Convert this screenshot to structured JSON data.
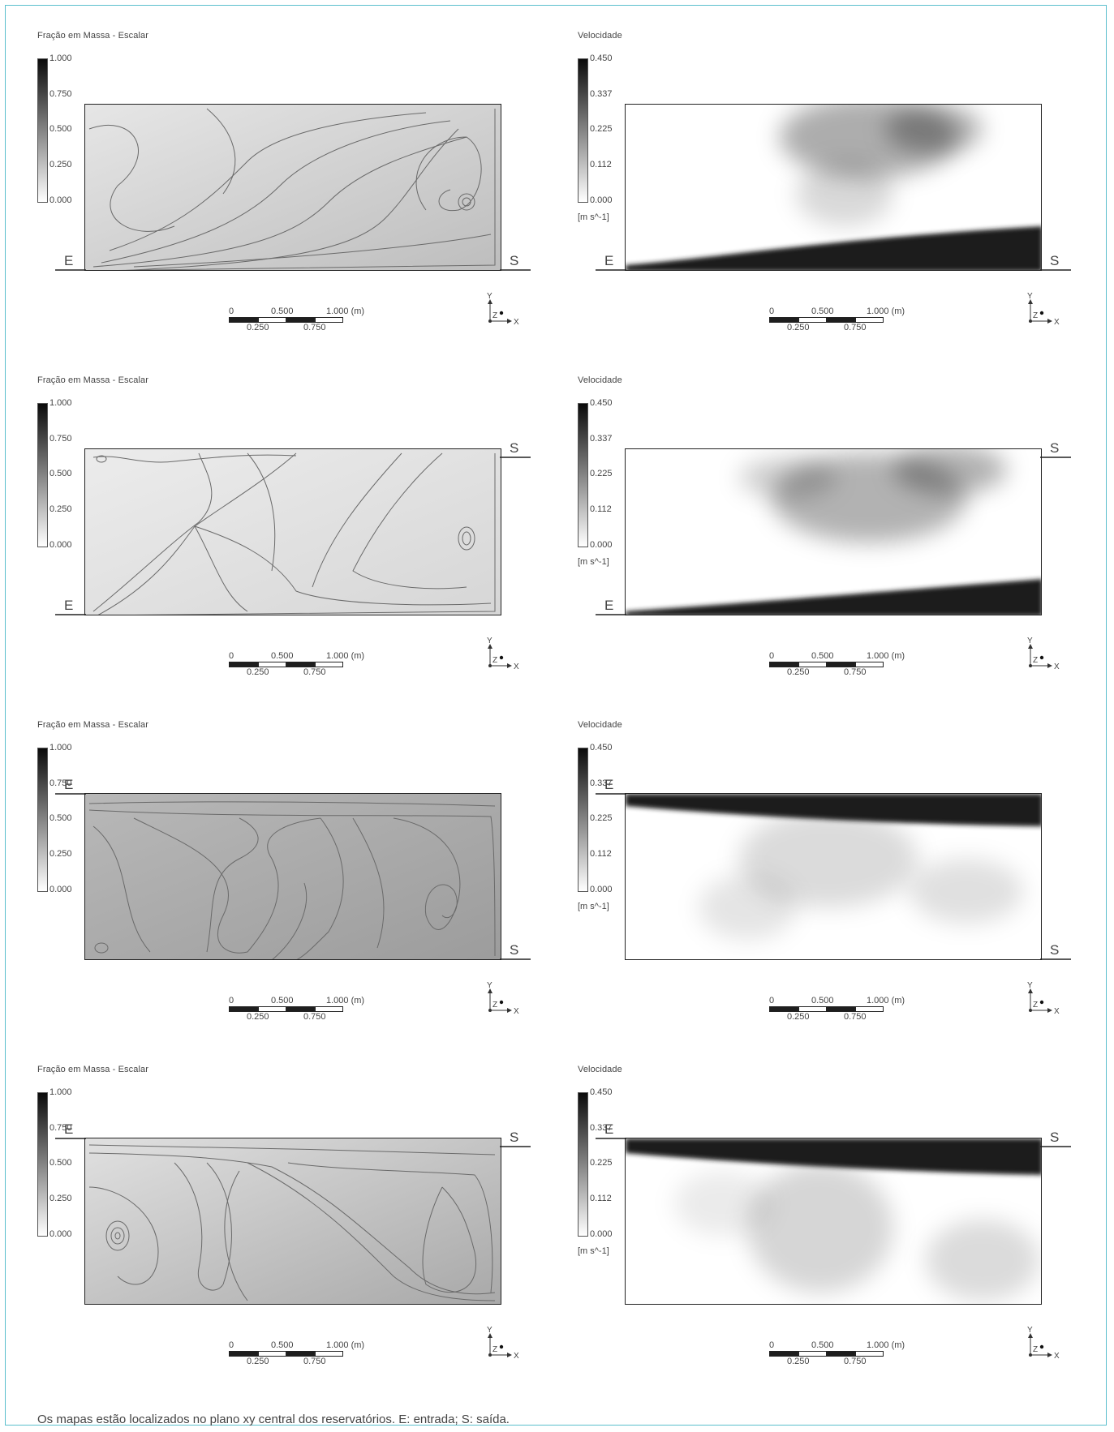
{
  "legend_scalar": {
    "title": "Fração em Massa - Escalar",
    "ticks": [
      "1.000",
      "0.750",
      "0.500",
      "0.250",
      "0.000"
    ]
  },
  "legend_velocity": {
    "title": "Velocidade",
    "ticks": [
      "0.450",
      "0.337",
      "0.225",
      "0.112",
      "0.000"
    ],
    "units": "[m s^-1]"
  },
  "labels": {
    "inlet": "E",
    "outlet": "S"
  },
  "scale_bar": {
    "top": [
      "0",
      "0.500",
      "1.000 (m)"
    ],
    "bottom": [
      "0.250",
      "0.750"
    ]
  },
  "axis_triad": {
    "y": "Y",
    "z": "Z",
    "x": "X"
  },
  "colors": {
    "frame": "#5bbfcd",
    "dark": "#1e1e1e",
    "streamline": "#6a6a6a"
  },
  "rows": [
    {
      "inlet_position": "bottom-left",
      "outlet_position": "bottom-right"
    },
    {
      "inlet_position": "bottom-left",
      "outlet_position": "top-right"
    },
    {
      "inlet_position": "top-left",
      "outlet_position": "bottom-right"
    },
    {
      "inlet_position": "top-left",
      "outlet_position": "top-right"
    }
  ],
  "caption": "Os mapas estão localizados no plano xy central dos reservatórios. E: entrada; S: saída."
}
